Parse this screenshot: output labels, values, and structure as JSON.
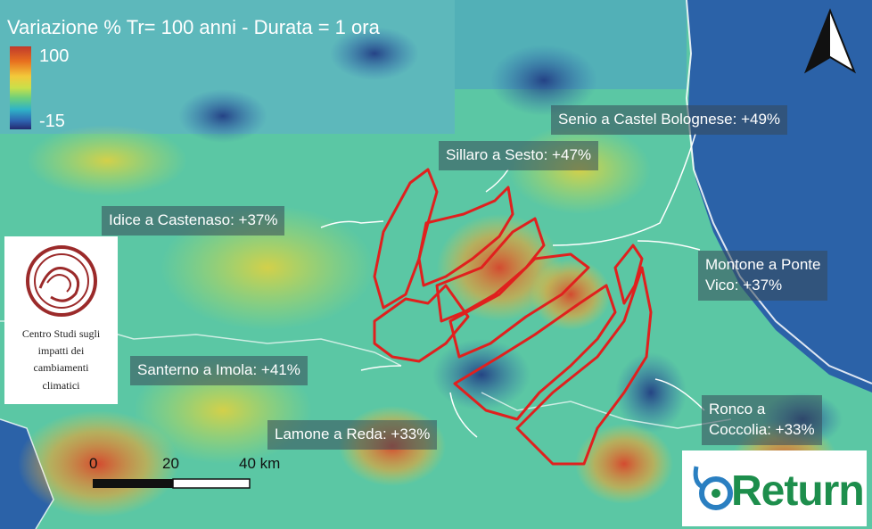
{
  "title": "Variazione % Tr= 100 anni - Durata = 1 ora",
  "legend": {
    "max": "100",
    "min": "-15"
  },
  "basin_labels": [
    {
      "id": "senio",
      "text": "Senio a Castel Bolognese: +49%"
    },
    {
      "id": "sillaro",
      "text": "Sillaro a Sesto: +47%"
    },
    {
      "id": "idice",
      "text": "Idice a Castenaso: +37%"
    },
    {
      "id": "montone",
      "text": "Montone a Ponte Vico: +37%",
      "line1": "Montone a Ponte",
      "line2": "Vico: +37%"
    },
    {
      "id": "santerno",
      "text": "Santerno a Imola: +41%"
    },
    {
      "id": "lamone",
      "text": "Lamone a Reda: +33%"
    },
    {
      "id": "ronco",
      "text": "Ronco a Coccolia: +33%",
      "line1": "Ronco a",
      "line2": "Coccolia: +33%"
    }
  ],
  "scale_bar": {
    "ticks": [
      "0",
      "20",
      "40 km"
    ]
  },
  "logos": {
    "cmcc": {
      "lines": [
        "Centro Studi sugli",
        "impatti dei",
        "cambiamenti",
        "climatici"
      ]
    },
    "return": {
      "text": "Return"
    }
  },
  "colors": {
    "outline": "#e0201e",
    "high": "#c0392b",
    "low": "#232a6e",
    "sea": "#2b62a8"
  }
}
